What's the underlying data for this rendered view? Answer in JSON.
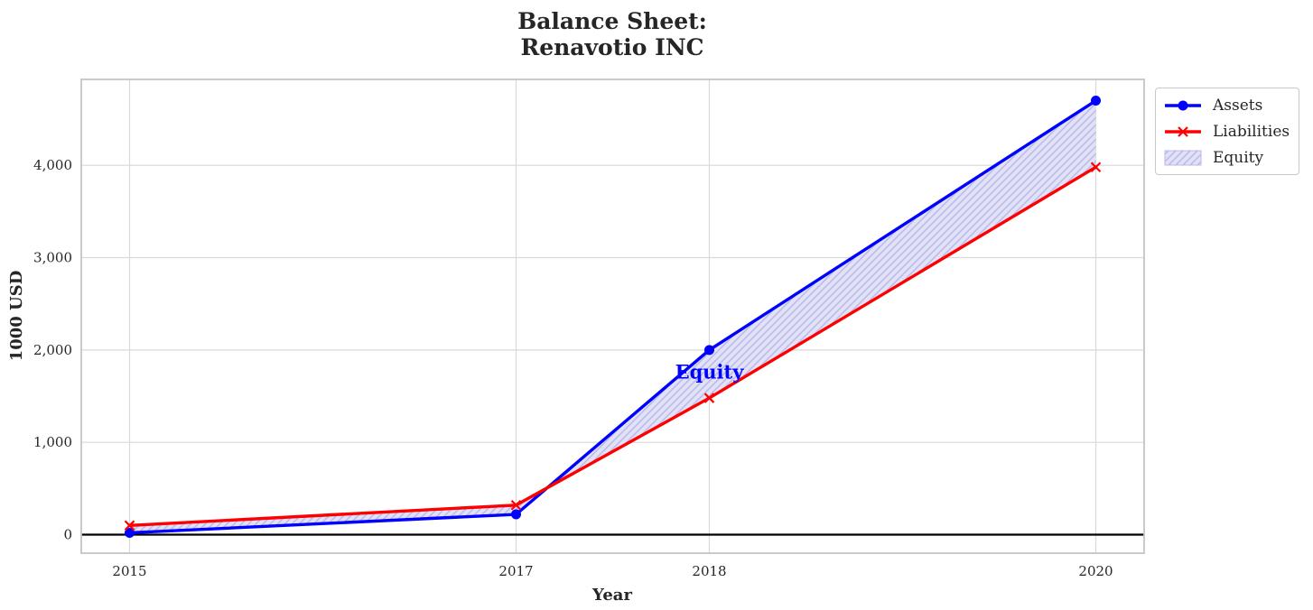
{
  "chart_data": {
    "type": "line",
    "title": "Balance Sheet:\nRenavotio INC",
    "title_lines": [
      "Balance Sheet:",
      "Renavotio INC"
    ],
    "xlabel": "Year",
    "ylabel": "1000 USD",
    "x": [
      2015,
      2017,
      2018,
      2020
    ],
    "xticks": [
      2015,
      2017,
      2018,
      2020
    ],
    "xtick_labels": [
      "2015",
      "2017",
      "2018",
      "2020"
    ],
    "yticks": [
      0,
      1000,
      2000,
      3000,
      4000
    ],
    "ytick_labels": [
      "0",
      "1,000",
      "2,000",
      "3,000",
      "4,000"
    ],
    "xlim": [
      2014.75,
      2020.25
    ],
    "ylim": [
      -200,
      4930
    ],
    "grid": true,
    "zero_line": true,
    "series": [
      {
        "name": "Assets",
        "color": "#0000ff",
        "marker": "circle",
        "values": [
          20,
          220,
          2000,
          4700
        ]
      },
      {
        "name": "Liabilities",
        "color": "#ff0000",
        "marker": "x",
        "values": [
          100,
          320,
          1480,
          3980
        ]
      }
    ],
    "fill": {
      "name": "Equity",
      "between": [
        "Assets",
        "Liabilities"
      ],
      "facecolor": "#e2e2f6",
      "hatchcolor": "#b9b9ec",
      "hatch": "/",
      "label_text": "Equity",
      "label_color": "#0000ff",
      "label_x": 2018,
      "label_y": 1760
    },
    "legend": {
      "position": "outside-top-right",
      "entries": [
        "Assets",
        "Liabilities",
        "Equity"
      ]
    },
    "text_color": "#262626"
  }
}
